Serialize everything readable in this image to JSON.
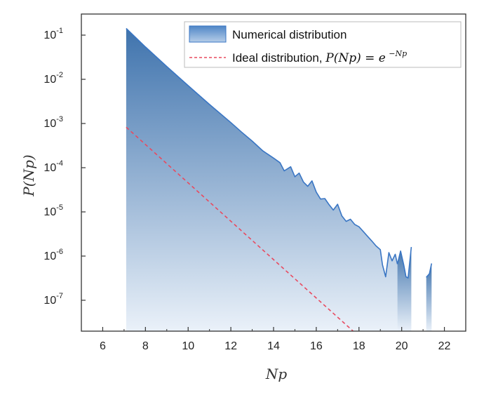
{
  "chart_data": {
    "type": "area",
    "y_scale": "log",
    "xlabel": "Np",
    "ylabel": "P(Np)",
    "xlim": [
      5,
      23
    ],
    "ylim": [
      2e-08,
      0.3
    ],
    "grid": false,
    "legend_placement": "top-right",
    "x_ticks": [
      6,
      8,
      10,
      12,
      14,
      16,
      18,
      20,
      22
    ],
    "x_tick_labels": [
      "6",
      "8",
      "10",
      "12",
      "14",
      "16",
      "18",
      "20",
      "22"
    ],
    "y_ticks": [
      {
        "value": 0.1,
        "base": "10",
        "exp": "-1"
      },
      {
        "value": 0.01,
        "base": "10",
        "exp": "-2"
      },
      {
        "value": 0.001,
        "base": "10",
        "exp": "-3"
      },
      {
        "value": 0.0001,
        "base": "10",
        "exp": "-4"
      },
      {
        "value": 1e-05,
        "base": "10",
        "exp": "-5"
      },
      {
        "value": 1e-06,
        "base": "10",
        "exp": "-6"
      },
      {
        "value": 1e-07,
        "base": "10",
        "exp": "-7"
      }
    ],
    "series": [
      {
        "name": "Numerical distribution",
        "style": "filled area with line",
        "color": "#3a76c4",
        "segments": [
          {
            "x": [
              7.1,
              8.0,
              9.0,
              10.0,
              11.0,
              12.0,
              12.5,
              13.0,
              13.5,
              14.0,
              14.3,
              14.5,
              14.8,
              15.0,
              15.2,
              15.4,
              15.6,
              15.8,
              16.0,
              16.2,
              16.4,
              16.6,
              16.8,
              17.0,
              17.2,
              17.4,
              17.6,
              17.8,
              18.0,
              18.2,
              18.4,
              18.6,
              18.8,
              19.0,
              19.1,
              19.25,
              19.4,
              19.55,
              19.7,
              19.8
            ],
            "y": [
              0.142,
              0.054,
              0.0195,
              0.0072,
              0.0027,
              0.00105,
              0.00064,
              0.0004,
              0.00024,
              0.000165,
              0.00013,
              8.5e-05,
              0.000105,
              6.25e-05,
              7.56e-05,
              4.75e-05,
              3.8e-05,
              5.04e-05,
              2.8e-05,
              1.95e-05,
              2e-05,
              1.45e-05,
              1.1e-05,
              1.49e-05,
              8.1e-06,
              6.1e-06,
              6.8e-06,
              5.2e-06,
              4.6e-06,
              3.6e-06,
              2.8e-06,
              2.2e-06,
              1.7e-06,
              1.4e-06,
              6.3e-07,
              3.4e-07,
              1.2e-06,
              7.8e-07,
              1.1e-06,
              6.6e-07
            ]
          },
          {
            "x": [
              19.8,
              19.95,
              20.1,
              20.2,
              20.3,
              20.45
            ],
            "y": [
              6.6e-07,
              1.3e-06,
              6.2e-07,
              3.4e-07,
              3.2e-07,
              1.6e-06
            ]
          },
          {
            "x": [
              21.15,
              21.3,
              21.4
            ],
            "y": [
              3.3e-07,
              4e-07,
              6.8e-07
            ]
          }
        ]
      },
      {
        "name": "Ideal distribution, P(Np) = e^{-Np}",
        "style": "dashed line",
        "color": "#e84a5f",
        "formula": "P(Np) = e^{-Np}",
        "x_range": [
          7.1,
          22.0
        ]
      }
    ]
  },
  "legend": {
    "numerical_label": "Numerical distribution",
    "ideal_prefix": "Ideal distribution, ",
    "ideal_formula_lhs": "P(Np) = e",
    "ideal_formula_exp": "−Np"
  },
  "colors": {
    "area_top": "#3f73ad",
    "area_bottom": "#e9f0f8",
    "line": "#3a76c4",
    "ideal": "#e84a5f",
    "axis": "#333333"
  }
}
